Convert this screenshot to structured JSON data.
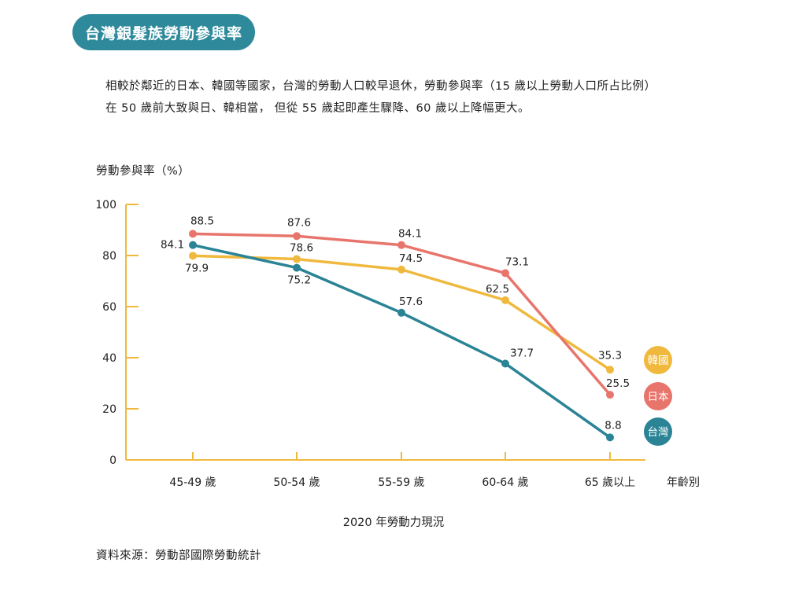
{
  "header": {
    "title": "台灣銀髮族勞動參與率"
  },
  "intro": {
    "line1": "相較於鄰近的日本、韓國等國家，台灣的勞動人口較早退休，勞動參與率（15 歲以上勞動人口所占比例）",
    "line2": "在 50 歲前大致與日、韓相當， 但從 55 歲起即產生驟降、60 歲以上降幅更大。"
  },
  "source": "資料來源：勞動部國際勞動統計",
  "chart_data": {
    "type": "line",
    "title": "2020 年勞動力現況",
    "ylabel": "勞動參與率（%）",
    "xlabel": "年齡別",
    "categories": [
      "45-49 歲",
      "50-54 歲",
      "55-59 歲",
      "60-64 歲",
      "65 歲以上"
    ],
    "ylim": [
      0,
      100
    ],
    "yticks": [
      0,
      20,
      40,
      60,
      80,
      100
    ],
    "grid": false,
    "legend_position": "right",
    "series": [
      {
        "name": "韓國",
        "color": "#f0b93e",
        "values": [
          79.9,
          78.6,
          74.5,
          62.5,
          35.3
        ]
      },
      {
        "name": "日本",
        "color": "#e8756c",
        "values": [
          88.5,
          87.6,
          84.1,
          73.1,
          25.5
        ]
      },
      {
        "name": "台灣",
        "color": "#2a8496",
        "values": [
          84.1,
          75.2,
          57.6,
          37.7,
          8.8
        ]
      }
    ],
    "axis_color": "#f0b93e"
  }
}
